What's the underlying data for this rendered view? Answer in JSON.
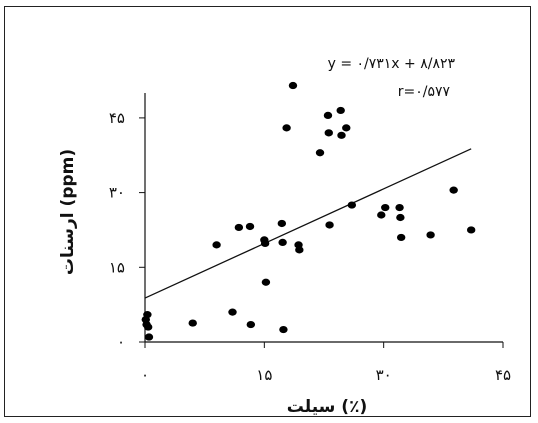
{
  "chart_data": {
    "type": "scatter",
    "xlabel": "سیلت (٪)",
    "ylabel": "ارسنات (ppm)",
    "xlim": [
      0,
      45
    ],
    "ylim": [
      0,
      50
    ],
    "xticks": [
      0,
      15,
      30,
      45
    ],
    "xtick_labels": [
      "۰",
      "۱۵",
      "۳۰",
      "۴۵"
    ],
    "yticks": [
      0,
      15,
      30,
      45
    ],
    "ytick_labels": [
      "۰",
      "۱۵",
      "۳۰",
      "۴۵"
    ],
    "equation": "y = ۰/۷۳۱x + ۸/۸۲۳",
    "r_label": "r=۰/۵۷۷",
    "trendline": {
      "slope": 0.731,
      "intercept": 8.823,
      "x_range": [
        0,
        41
      ]
    },
    "points": [
      {
        "x": 0.1,
        "y": 4.5
      },
      {
        "x": 0.2,
        "y": 3.5
      },
      {
        "x": 0.3,
        "y": 5.5
      },
      {
        "x": 0.5,
        "y": 1.0
      },
      {
        "x": 0.4,
        "y": 3.0
      },
      {
        "x": 6,
        "y": 3.8
      },
      {
        "x": 9,
        "y": 19.5
      },
      {
        "x": 11,
        "y": 6.0
      },
      {
        "x": 11.8,
        "y": 23.0
      },
      {
        "x": 13.2,
        "y": 23.2
      },
      {
        "x": 13.3,
        "y": 3.5
      },
      {
        "x": 15,
        "y": 20.5
      },
      {
        "x": 15.1,
        "y": 19.8
      },
      {
        "x": 15.2,
        "y": 12.0
      },
      {
        "x": 17.2,
        "y": 23.8
      },
      {
        "x": 17.3,
        "y": 20.0
      },
      {
        "x": 17.4,
        "y": 2.5
      },
      {
        "x": 17.8,
        "y": 43.0
      },
      {
        "x": 18.6,
        "y": 51.5
      },
      {
        "x": 19.3,
        "y": 19.5
      },
      {
        "x": 19.4,
        "y": 18.5
      },
      {
        "x": 22.0,
        "y": 38.0
      },
      {
        "x": 23.0,
        "y": 45.5
      },
      {
        "x": 23.1,
        "y": 42.0
      },
      {
        "x": 23.2,
        "y": 23.5
      },
      {
        "x": 24.6,
        "y": 46.5
      },
      {
        "x": 24.7,
        "y": 41.5
      },
      {
        "x": 25.3,
        "y": 43.0
      },
      {
        "x": 26.0,
        "y": 27.5
      },
      {
        "x": 29.7,
        "y": 25.5
      },
      {
        "x": 30.2,
        "y": 27.0
      },
      {
        "x": 32.0,
        "y": 27.0
      },
      {
        "x": 32.1,
        "y": 25.0
      },
      {
        "x": 32.2,
        "y": 21.0
      },
      {
        "x": 35.9,
        "y": 21.5
      },
      {
        "x": 38.8,
        "y": 30.5
      },
      {
        "x": 41.0,
        "y": 22.5
      }
    ]
  }
}
